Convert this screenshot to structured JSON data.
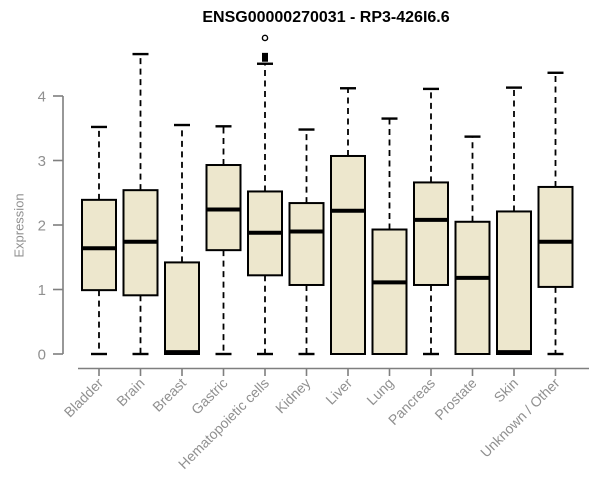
{
  "chart_data": {
    "type": "boxplot",
    "title": "ENSG00000270031 - RP3-426I6.6",
    "ylabel": "Expression",
    "xlabel": "",
    "ylim": [
      0,
      4
    ],
    "yticks": [
      0,
      1,
      2,
      3,
      4
    ],
    "grid": false,
    "legend": "none",
    "categories": [
      "Bladder",
      "Brain",
      "Breast",
      "Gastric",
      "Hematopoietic cells",
      "Kidney",
      "Liver",
      "Lung",
      "Pancreas",
      "Prostate",
      "Skin",
      "Unknown / Other"
    ],
    "series": [
      {
        "category": "Bladder",
        "whisker_low": 0,
        "q1": 0.99,
        "median": 1.64,
        "q3": 2.39,
        "whisker_high": 3.52,
        "outliers": []
      },
      {
        "category": "Brain",
        "whisker_low": 0,
        "q1": 0.91,
        "median": 1.74,
        "q3": 2.54,
        "whisker_high": 4.65,
        "outliers": []
      },
      {
        "category": "Breast",
        "whisker_low": 0,
        "q1": 0.0,
        "median": 0.03,
        "q3": 1.42,
        "whisker_high": 3.55,
        "outliers": []
      },
      {
        "category": "Gastric",
        "whisker_low": 0,
        "q1": 1.61,
        "median": 2.24,
        "q3": 2.93,
        "whisker_high": 3.53,
        "outliers": []
      },
      {
        "category": "Hematopoietic cells",
        "whisker_low": 0,
        "q1": 1.22,
        "median": 1.88,
        "q3": 2.52,
        "whisker_high": 4.5,
        "outliers": [
          {
            "value": 4.9,
            "style": "open"
          },
          {
            "value": 4.63,
            "style": "filled"
          },
          {
            "value": 4.57,
            "style": "filled"
          }
        ]
      },
      {
        "category": "Kidney",
        "whisker_low": 0,
        "q1": 1.07,
        "median": 1.9,
        "q3": 2.34,
        "whisker_high": 3.48,
        "outliers": []
      },
      {
        "category": "Liver",
        "whisker_low": 0,
        "q1": 0.0,
        "median": 2.22,
        "q3": 3.07,
        "whisker_high": 4.12,
        "outliers": []
      },
      {
        "category": "Lung",
        "whisker_low": 0,
        "q1": 0.0,
        "median": 1.11,
        "q3": 1.93,
        "whisker_high": 3.65,
        "outliers": []
      },
      {
        "category": "Pancreas",
        "whisker_low": 0,
        "q1": 1.07,
        "median": 2.08,
        "q3": 2.66,
        "whisker_high": 4.11,
        "outliers": []
      },
      {
        "category": "Prostate",
        "whisker_low": 0,
        "q1": 0.0,
        "median": 1.18,
        "q3": 2.05,
        "whisker_high": 3.37,
        "outliers": []
      },
      {
        "category": "Skin",
        "whisker_low": 0,
        "q1": 0.0,
        "median": 0.03,
        "q3": 2.21,
        "whisker_high": 4.13,
        "outliers": []
      },
      {
        "category": "Unknown / Other",
        "whisker_low": 0,
        "q1": 1.04,
        "median": 1.74,
        "q3": 2.59,
        "whisker_high": 4.36,
        "outliers": []
      }
    ],
    "style": {
      "box_fill": "#EDE7CD",
      "box_stroke": "#000000",
      "median_color": "#000000",
      "whisker_color": "#000000",
      "axis_color": "#7F7F7F",
      "label_color": "#909090",
      "title_color": "#000000",
      "background": "#FFFFFF"
    }
  }
}
